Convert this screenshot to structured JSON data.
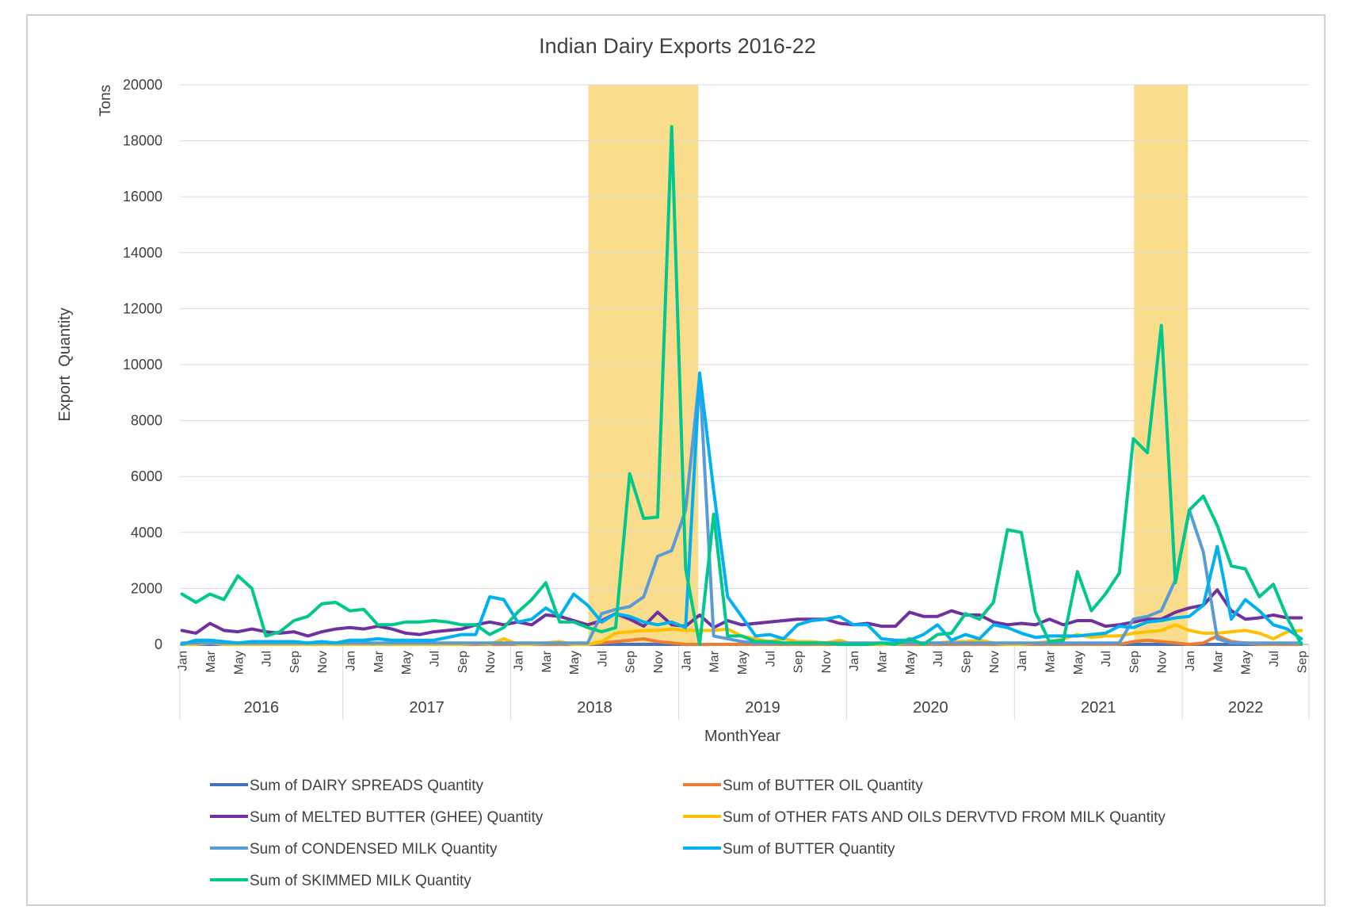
{
  "chart_data": {
    "type": "line",
    "title": "Indian Dairy Exports 2016-22",
    "xlabel": "MonthYear",
    "ylabel": "Export  Quantity",
    "unit_label": "Tons",
    "ylim": [
      0,
      20000
    ],
    "yticks": [
      0,
      2000,
      4000,
      6000,
      8000,
      10000,
      12000,
      14000,
      16000,
      18000,
      20000
    ],
    "years": [
      "2016",
      "2017",
      "2018",
      "2019",
      "2020",
      "2021",
      "2022"
    ],
    "month_tick_labels": [
      "Jan",
      "Mar",
      "May",
      "Jul",
      "Sep",
      "Nov"
    ],
    "month_tick_labels_2022": [
      "Jan",
      "Mar",
      "May",
      "Jul",
      "Sep"
    ],
    "highlight_periods": [
      {
        "start_index": 29,
        "end_index": 37
      },
      {
        "start_index": 68,
        "end_index": 72
      }
    ],
    "highlight_color": "#f9dc8c",
    "series": [
      {
        "name": "Sum of DAIRY SPREADS Quantity",
        "color": "#4472c4",
        "values": [
          0,
          0,
          0,
          0,
          0,
          0,
          0,
          0,
          0,
          0,
          0,
          0,
          0,
          0,
          0,
          0,
          0,
          0,
          0,
          0,
          0,
          0,
          0,
          0,
          0,
          0,
          0,
          0,
          0,
          0,
          0,
          0,
          0,
          0,
          0,
          0,
          0,
          0,
          0,
          0,
          0,
          0,
          0,
          0,
          0,
          0,
          0,
          0,
          0,
          0,
          0,
          0,
          0,
          0,
          0,
          0,
          0,
          0,
          0,
          0,
          0,
          0,
          0,
          0,
          0,
          0,
          0,
          0,
          0,
          0,
          0,
          0,
          0,
          0,
          0,
          0,
          0,
          0,
          0,
          0,
          0
        ]
      },
      {
        "name": "Sum of BUTTER OIL Quantity",
        "color": "#ed7d31",
        "values": [
          0,
          50,
          80,
          30,
          20,
          0,
          0,
          0,
          0,
          0,
          0,
          0,
          0,
          0,
          0,
          0,
          0,
          0,
          0,
          0,
          0,
          0,
          0,
          0,
          0,
          0,
          0,
          0,
          0,
          0,
          50,
          100,
          150,
          200,
          100,
          50,
          0,
          0,
          0,
          0,
          0,
          0,
          0,
          0,
          0,
          0,
          0,
          0,
          0,
          0,
          0,
          0,
          0,
          0,
          0,
          0,
          0,
          0,
          0,
          0,
          0,
          0,
          0,
          0,
          0,
          0,
          0,
          0,
          100,
          150,
          100,
          50,
          0,
          50,
          300,
          100,
          50,
          0,
          0,
          0,
          0
        ]
      },
      {
        "name": "Sum of MELTED BUTTER (GHEE) Quantity",
        "color": "#7030a0",
        "values": [
          500,
          400,
          750,
          500,
          450,
          550,
          450,
          400,
          450,
          300,
          450,
          550,
          600,
          550,
          650,
          550,
          400,
          350,
          450,
          500,
          550,
          700,
          800,
          700,
          800,
          700,
          1050,
          1000,
          850,
          700,
          850,
          1100,
          900,
          650,
          1150,
          700,
          650,
          1050,
          600,
          850,
          700,
          750,
          800,
          850,
          900,
          900,
          900,
          750,
          700,
          750,
          650,
          650,
          1150,
          1000,
          1000,
          1200,
          1050,
          1050,
          800,
          700,
          750,
          700,
          900,
          700,
          850,
          850,
          650,
          700,
          800,
          900,
          900,
          1150,
          1300,
          1400,
          1950,
          1200,
          900,
          950,
          1050,
          950,
          950
        ]
      },
      {
        "name": "Sum of OTHER FATS AND OILS DERVTVD  FROM MILK Quantity",
        "color": "#ffc000",
        "values": [
          0,
          0,
          50,
          0,
          0,
          0,
          0,
          0,
          0,
          0,
          0,
          0,
          0,
          0,
          0,
          0,
          0,
          0,
          0,
          0,
          0,
          50,
          0,
          200,
          0,
          0,
          50,
          100,
          0,
          0,
          100,
          400,
          450,
          500,
          500,
          550,
          500,
          500,
          500,
          550,
          300,
          200,
          100,
          200,
          100,
          100,
          50,
          150,
          0,
          0,
          0,
          0,
          50,
          50,
          50,
          100,
          100,
          150,
          50,
          0,
          0,
          50,
          100,
          200,
          350,
          250,
          300,
          300,
          400,
          450,
          500,
          700,
          500,
          400,
          400,
          450,
          500,
          400,
          200,
          450,
          500
        ]
      },
      {
        "name": "Sum of CONDENSED MILK Quantity",
        "color": "#5b9bd5",
        "values": [
          50,
          50,
          50,
          50,
          50,
          50,
          50,
          50,
          50,
          50,
          50,
          50,
          50,
          50,
          50,
          50,
          50,
          50,
          50,
          50,
          50,
          50,
          50,
          50,
          50,
          50,
          50,
          50,
          50,
          50,
          1100,
          1250,
          1350,
          1700,
          3150,
          3350,
          4800,
          9600,
          300,
          200,
          100,
          50,
          50,
          50,
          50,
          50,
          50,
          50,
          50,
          50,
          50,
          50,
          50,
          50,
          50,
          50,
          50,
          50,
          50,
          50,
          50,
          50,
          50,
          50,
          50,
          50,
          50,
          50,
          900,
          1000,
          1200,
          2300,
          4800,
          3300,
          200,
          50,
          50,
          50,
          50,
          50,
          50
        ]
      },
      {
        "name": "Sum of BUTTER Quantity",
        "color": "#00b0f0",
        "values": [
          0,
          150,
          150,
          100,
          50,
          100,
          100,
          100,
          100,
          50,
          100,
          50,
          150,
          150,
          200,
          150,
          150,
          150,
          150,
          250,
          350,
          350,
          1700,
          1600,
          800,
          900,
          1300,
          1000,
          1800,
          1400,
          800,
          1100,
          1000,
          800,
          700,
          800,
          600,
          9700,
          5500,
          1700,
          1000,
          300,
          350,
          200,
          700,
          850,
          900,
          1000,
          700,
          700,
          200,
          150,
          150,
          350,
          700,
          150,
          350,
          200,
          700,
          600,
          400,
          250,
          300,
          300,
          300,
          350,
          400,
          650,
          600,
          800,
          850,
          950,
          1000,
          1400,
          3500,
          900,
          1600,
          1200,
          700,
          550,
          200
        ]
      },
      {
        "name": "Sum of SKIMMED MILK Quantity",
        "color": "#00c78c",
        "values": [
          1800,
          1500,
          1800,
          1600,
          2450,
          2000,
          300,
          450,
          850,
          1000,
          1450,
          1500,
          1200,
          1250,
          700,
          700,
          800,
          800,
          850,
          800,
          700,
          700,
          350,
          600,
          1150,
          1600,
          2200,
          800,
          800,
          600,
          450,
          600,
          6100,
          4500,
          4550,
          18500,
          2700,
          0,
          4650,
          300,
          300,
          100,
          100,
          50,
          50,
          50,
          50,
          0,
          0,
          0,
          50,
          0,
          200,
          0,
          350,
          400,
          1100,
          900,
          1500,
          4100,
          4000,
          1150,
          100,
          150,
          2600,
          1200,
          1800,
          2550,
          7350,
          6850,
          11400,
          2200,
          4800,
          5300,
          4250,
          2800,
          2700,
          1700,
          2150,
          950,
          0
        ]
      }
    ]
  }
}
